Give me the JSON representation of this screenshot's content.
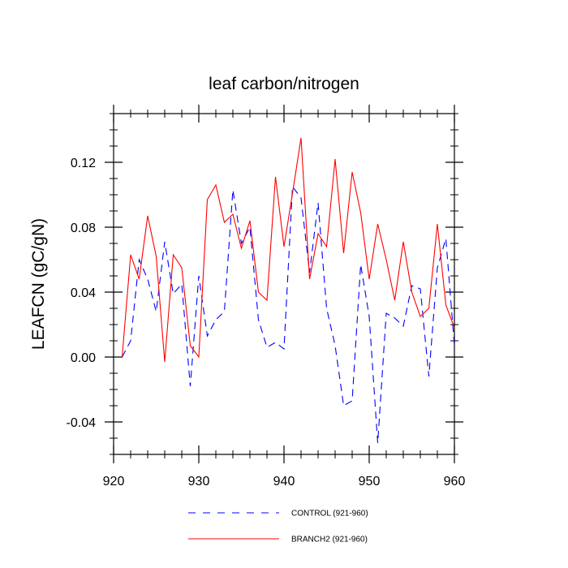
{
  "chart_data": {
    "type": "line",
    "title": "leaf carbon/nitrogen",
    "xlabel": "",
    "ylabel": "LEAFCN  (gC/gN)",
    "xlim": [
      920,
      960
    ],
    "ylim": [
      -0.06,
      0.15
    ],
    "xticks": [
      920,
      930,
      940,
      950,
      960
    ],
    "xtick_labels": [
      "920",
      "930",
      "940",
      "950",
      "960"
    ],
    "yticks": [
      -0.04,
      0.0,
      0.04,
      0.08,
      0.12
    ],
    "ytick_labels": [
      "-0.04",
      "0.00",
      "0.04",
      "0.08",
      "0.12"
    ],
    "grid": false,
    "legend_position": "bottom",
    "x": [
      921,
      922,
      923,
      924,
      925,
      926,
      927,
      928,
      929,
      930,
      931,
      932,
      933,
      934,
      935,
      936,
      937,
      938,
      939,
      940,
      941,
      942,
      943,
      944,
      945,
      946,
      947,
      948,
      949,
      950,
      951,
      952,
      953,
      954,
      955,
      956,
      957,
      958,
      959,
      960
    ],
    "series": [
      {
        "name": "CONTROL (921-960)",
        "color": "#0000ff",
        "style": "dashed",
        "values": [
          0.0,
          0.01,
          0.06,
          0.048,
          0.028,
          0.071,
          0.039,
          0.045,
          -0.018,
          0.05,
          0.013,
          0.023,
          0.028,
          0.103,
          0.07,
          0.08,
          0.023,
          0.006,
          0.009,
          0.005,
          0.105,
          0.098,
          0.052,
          0.095,
          0.03,
          0.007,
          -0.03,
          -0.027,
          0.057,
          0.025,
          -0.053,
          0.027,
          0.024,
          0.019,
          0.044,
          0.042,
          -0.012,
          0.055,
          0.073,
          0.007
        ]
      },
      {
        "name": "BRANCH2 (921-960)",
        "color": "#ff0000",
        "style": "solid",
        "values": [
          0.0,
          0.063,
          0.048,
          0.087,
          0.062,
          -0.003,
          0.063,
          0.055,
          0.007,
          0.0,
          0.097,
          0.106,
          0.083,
          0.088,
          0.067,
          0.084,
          0.04,
          0.035,
          0.111,
          0.068,
          0.101,
          0.135,
          0.048,
          0.076,
          0.068,
          0.122,
          0.064,
          0.114,
          0.089,
          0.048,
          0.082,
          0.06,
          0.035,
          0.071,
          0.04,
          0.025,
          0.03,
          0.082,
          0.032,
          0.018
        ]
      }
    ]
  }
}
